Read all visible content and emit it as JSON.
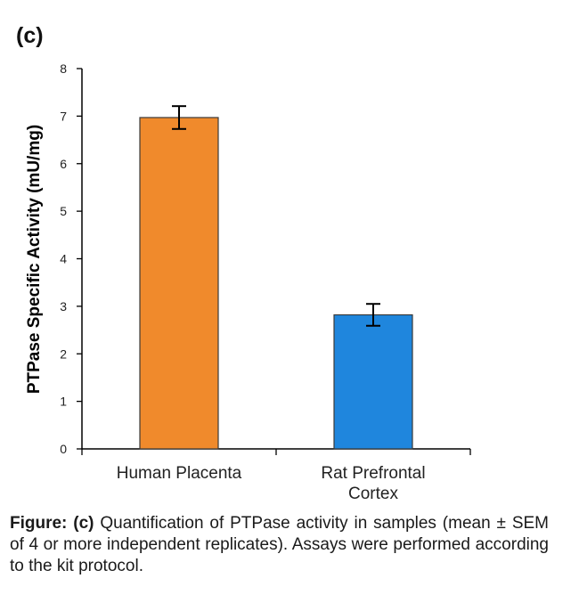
{
  "panel_label": "(c)",
  "chart_data": {
    "type": "bar",
    "categories": [
      "Human Placenta",
      "Rat Prefrontal Cortex"
    ],
    "category_lines": [
      [
        "Human Placenta"
      ],
      [
        "Rat Prefrontal",
        "Cortex"
      ]
    ],
    "series": [
      {
        "values": [
          6.97,
          2.82
        ],
        "errors": [
          0.24,
          0.23
        ],
        "colors": [
          "#f08a2c",
          "#1f86dd"
        ]
      }
    ],
    "ylabel": "PTPase Specific Activity (mU/mg)",
    "xlabel": "",
    "ylim": [
      0,
      8
    ],
    "yticks": [
      0,
      1,
      2,
      3,
      4,
      5,
      6,
      7,
      8
    ],
    "grid": false,
    "bar_edge_color": "#3a3a3a",
    "axis_color": "#000000"
  },
  "caption": {
    "lead": "Figure: (c)",
    "text": " Quantification of PTPase activity in samples (mean ± SEM of 4 or more independent replicates). Assays were performed according to the kit protocol."
  }
}
